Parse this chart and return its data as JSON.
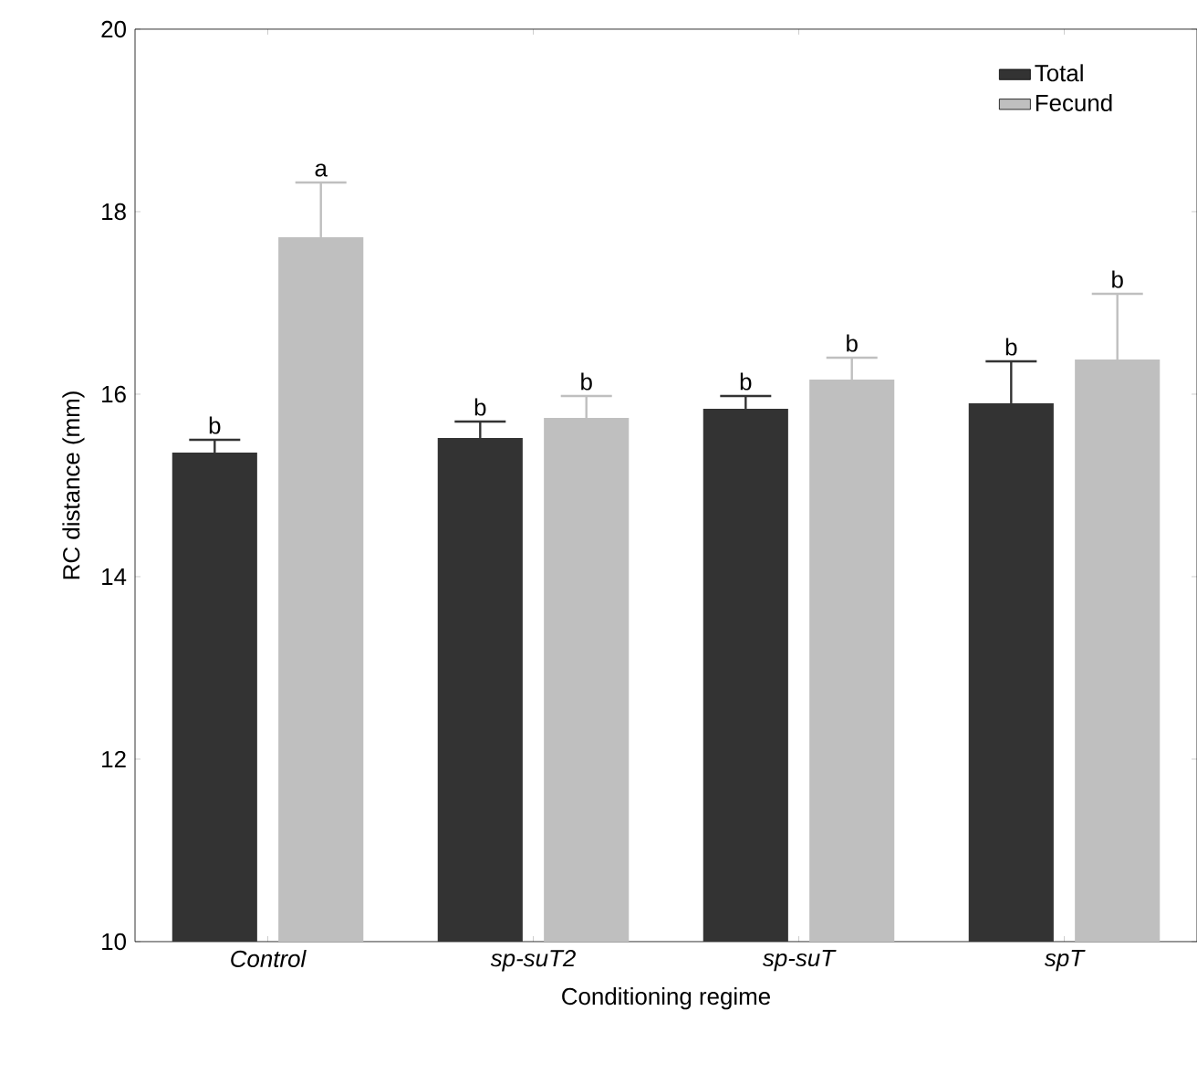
{
  "chart_data": {
    "type": "bar",
    "xlabel": "Conditioning regime",
    "ylabel": "RC distance (mm)",
    "categories": [
      "Control",
      "sp-suT2",
      "sp-suT",
      "spT"
    ],
    "series": [
      {
        "name": "Total",
        "color": "#333333",
        "values": [
          15.36,
          15.52,
          15.84,
          15.9
        ],
        "errors": [
          0.14,
          0.18,
          0.14,
          0.46
        ],
        "value_labels": [
          "b",
          "b",
          "b",
          "b"
        ]
      },
      {
        "name": "Fecund",
        "color": "#bfbfbf",
        "values": [
          17.72,
          15.74,
          16.16,
          16.38
        ],
        "errors": [
          0.6,
          0.24,
          0.24,
          0.72
        ],
        "value_labels": [
          "a",
          "b",
          "b",
          "b"
        ]
      }
    ],
    "ylim": [
      10,
      20
    ],
    "yticks": [
      10,
      12,
      14,
      16,
      18,
      20
    ],
    "grid": false,
    "legend": "top right"
  }
}
